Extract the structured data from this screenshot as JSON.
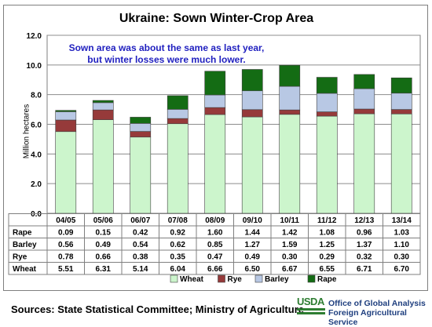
{
  "title": "Ukraine:  Sown Winter-Crop Area",
  "annotation": [
    "Sown area was about the same as last year,",
    "but winter losses were much lower."
  ],
  "source": "Sources: State Statistical Committee; Ministry of Agriculture",
  "logo_text": "USDA",
  "agency": [
    "Office of Global Analysis",
    "Foreign Agricultural Service"
  ],
  "colors": {
    "Wheat": "#ccf5cc",
    "Rye": "#963a3a",
    "Barley": "#b8c8e4",
    "Rape": "#146c14",
    "annotation": "#1f1fbf"
  },
  "chart_data": {
    "type": "bar",
    "stacked": true,
    "title": "Ukraine:  Sown Winter-Crop Area",
    "ylabel": "Million hectares",
    "xlabel": "",
    "ylim": [
      0,
      12
    ],
    "yticks": [
      "0.0",
      "2.0",
      "4.0",
      "6.0",
      "8.0",
      "10.0",
      "12.0"
    ],
    "categories": [
      "04/05",
      "05/06",
      "06/07",
      "07/08",
      "08/09",
      "09/10",
      "10/11",
      "11/12",
      "12/13",
      "13/14"
    ],
    "series": [
      {
        "name": "Wheat",
        "values": [
          5.51,
          6.31,
          5.14,
          6.04,
          6.66,
          6.5,
          6.67,
          6.55,
          6.71,
          6.7
        ]
      },
      {
        "name": "Rye",
        "values": [
          0.78,
          0.66,
          0.38,
          0.35,
          0.47,
          0.49,
          0.3,
          0.29,
          0.32,
          0.3
        ]
      },
      {
        "name": "Barley",
        "values": [
          0.56,
          0.49,
          0.54,
          0.62,
          0.85,
          1.27,
          1.59,
          1.25,
          1.37,
          1.1
        ]
      },
      {
        "name": "Rape",
        "values": [
          0.09,
          0.15,
          0.42,
          0.92,
          1.6,
          1.44,
          1.42,
          1.08,
          0.96,
          1.03
        ]
      }
    ],
    "table_row_order": [
      "Rape",
      "Barley",
      "Rye",
      "Wheat"
    ],
    "legend": [
      "Wheat",
      "Rye",
      "Barley",
      "Rape"
    ],
    "legend_position": "bottom",
    "grid": true
  }
}
